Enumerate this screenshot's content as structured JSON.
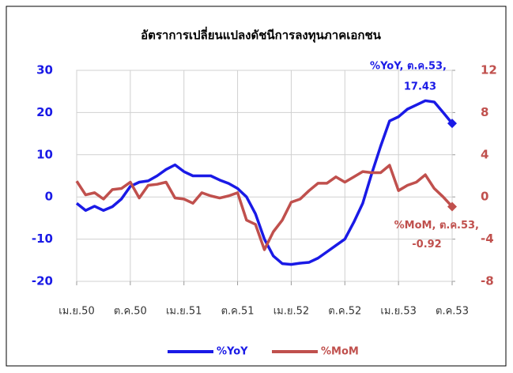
{
  "chart_data": {
    "type": "line",
    "title": "อัตราการเปลี่ยนแปลงดัชนีการลงทุนภาคเอกชน",
    "categories": [
      "เม.ย.50",
      null,
      null,
      null,
      null,
      null,
      "ต.ค.50",
      null,
      null,
      null,
      null,
      null,
      "เม.ย.51",
      null,
      null,
      null,
      null,
      null,
      "ต.ค.51",
      null,
      null,
      null,
      null,
      null,
      "เม.ย.52",
      null,
      null,
      null,
      null,
      null,
      "ต.ค.52",
      null,
      null,
      null,
      null,
      null,
      "เม.ย.53",
      null,
      null,
      null,
      null,
      null,
      "ต.ค.53"
    ],
    "series": [
      {
        "name": "%YoY",
        "color": "#1a1ae6",
        "axis": "y",
        "values": [
          -1.5,
          -3.2,
          -2.2,
          -3.2,
          -2.3,
          -0.5,
          2.5,
          3.5,
          3.8,
          5,
          6.5,
          7.6,
          6,
          5,
          5,
          5,
          4,
          3.2,
          2,
          0,
          -4,
          -10,
          -14,
          -15.8,
          -16,
          -15.7,
          -15.5,
          -14.5,
          -13,
          -11.5,
          -10,
          -6,
          -1.5,
          5.5,
          12,
          18,
          19,
          20.8,
          21.8,
          22.8,
          22.5,
          20,
          17.43
        ]
      },
      {
        "name": "%MoM",
        "color": "#c0504d",
        "axis": "y2",
        "values": [
          1.5,
          0.2,
          0.4,
          -0.2,
          0.7,
          0.8,
          1.4,
          -0.1,
          1.1,
          1.2,
          1.4,
          -0.1,
          -0.2,
          -0.6,
          0.4,
          0.1,
          -0.1,
          0.1,
          0.4,
          -2.2,
          -2.6,
          -5,
          -3.3,
          -2.2,
          -0.5,
          -0.2,
          0.6,
          1.3,
          1.3,
          1.9,
          1.4,
          1.9,
          2.4,
          2.3,
          2.3,
          3,
          0.6,
          1.1,
          1.4,
          2.1,
          0.8,
          0,
          -0.92
        ]
      }
    ],
    "annotations": [
      "%YoY, ต.ค.53,",
      "%MoM, ต.ค.53,"
    ],
    "ylim": [
      -20,
      30
    ],
    "yticks": [
      -20,
      -10,
      0,
      10,
      20,
      30
    ],
    "y2lim": [
      -8,
      12
    ],
    "y2ticks": [
      -8,
      -4,
      0,
      4,
      8,
      12
    ],
    "grid": true,
    "legend": "bottom"
  }
}
